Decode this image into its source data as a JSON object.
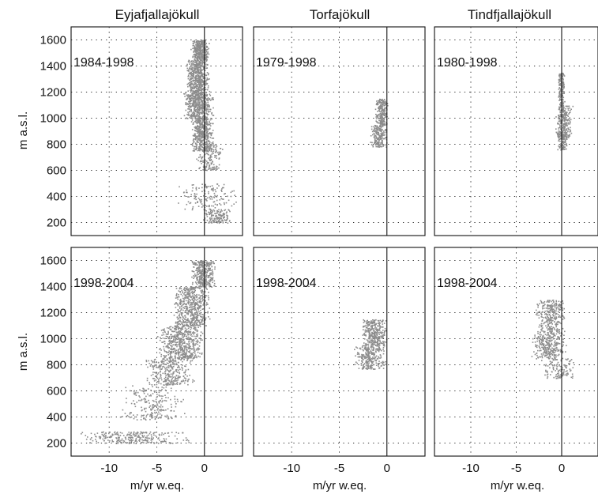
{
  "chart_data": {
    "type": "scatter",
    "layout": "2 rows x 3 columns small multiples",
    "x_range": [
      -14,
      4
    ],
    "y_range": [
      100,
      1700
    ],
    "x_ticks": [
      -10,
      -5,
      0
    ],
    "y_ticks": [
      200,
      400,
      600,
      800,
      1000,
      1200,
      1400,
      1600
    ],
    "grid": true,
    "point_color": "#8c8c8c",
    "xlabel": "m/yr w.eq.",
    "ylabel": "m a.s.l.",
    "column_titles": [
      "Eyjafjallajökull",
      "Torfajökull",
      "Tindfjallajökull"
    ],
    "panels": [
      {
        "glacier": "Eyjafjallajökull",
        "period": "1984-1998",
        "clusters": [
          {
            "x": [
              -1.5,
              0.5
            ],
            "y": [
              1450,
              1600
            ],
            "n": 350
          },
          {
            "x": [
              -2,
              0.5
            ],
            "y": [
              1200,
              1450
            ],
            "n": 500
          },
          {
            "x": [
              -2.3,
              1.0
            ],
            "y": [
              1000,
              1200
            ],
            "n": 500
          },
          {
            "x": [
              -1.5,
              1.0
            ],
            "y": [
              750,
              1000
            ],
            "n": 450
          },
          {
            "x": [
              -1.0,
              2.0
            ],
            "y": [
              600,
              800
            ],
            "n": 160
          },
          {
            "x": [
              -3.0,
              3.5
            ],
            "y": [
              300,
              500
            ],
            "n": 150
          },
          {
            "x": [
              -0.3,
              3.0
            ],
            "y": [
              200,
              300
            ],
            "n": 140
          }
        ]
      },
      {
        "glacier": "Torfajökull",
        "period": "1979-1998",
        "clusters": [
          {
            "x": [
              -1.3,
              0.1
            ],
            "y": [
              950,
              1150
            ],
            "n": 220
          },
          {
            "x": [
              -1.8,
              0.0
            ],
            "y": [
              780,
              950
            ],
            "n": 200
          }
        ]
      },
      {
        "glacier": "Tindfjallajökull",
        "period": "1980-1998",
        "clusters": [
          {
            "x": [
              -0.5,
              0.3
            ],
            "y": [
              1100,
              1350
            ],
            "n": 160
          },
          {
            "x": [
              -0.8,
              1.2
            ],
            "y": [
              850,
              1100
            ],
            "n": 260
          },
          {
            "x": [
              -0.6,
              0.6
            ],
            "y": [
              760,
              880
            ],
            "n": 100
          }
        ]
      },
      {
        "glacier": "Eyjafjallajökull",
        "period": "1998-2004",
        "clusters": [
          {
            "x": [
              -1.5,
              1.2
            ],
            "y": [
              1400,
              1600
            ],
            "n": 350
          },
          {
            "x": [
              -3.5,
              0.6
            ],
            "y": [
              1100,
              1400
            ],
            "n": 550
          },
          {
            "x": [
              -5.0,
              0.0
            ],
            "y": [
              850,
              1100
            ],
            "n": 550
          },
          {
            "x": [
              -6.5,
              -1.0
            ],
            "y": [
              650,
              850
            ],
            "n": 300
          },
          {
            "x": [
              -9.0,
              -2.0
            ],
            "y": [
              380,
              650
            ],
            "n": 220
          },
          {
            "x": [
              -13.5,
              -1.0
            ],
            "y": [
              200,
              290
            ],
            "n": 260
          }
        ]
      },
      {
        "glacier": "Torfajökull",
        "period": "1998-2004",
        "clusters": [
          {
            "x": [
              -2.8,
              0.0
            ],
            "y": [
              950,
              1150
            ],
            "n": 320
          },
          {
            "x": [
              -3.5,
              0.0
            ],
            "y": [
              770,
              950
            ],
            "n": 280
          }
        ]
      },
      {
        "glacier": "Tindfjallajökull",
        "period": "1998-2004",
        "clusters": [
          {
            "x": [
              -3.0,
              0.5
            ],
            "y": [
              1050,
              1300
            ],
            "n": 300
          },
          {
            "x": [
              -3.5,
              0.5
            ],
            "y": [
              850,
              1050
            ],
            "n": 300
          },
          {
            "x": [
              -2.5,
              1.5
            ],
            "y": [
              700,
              850
            ],
            "n": 120
          }
        ]
      }
    ]
  }
}
